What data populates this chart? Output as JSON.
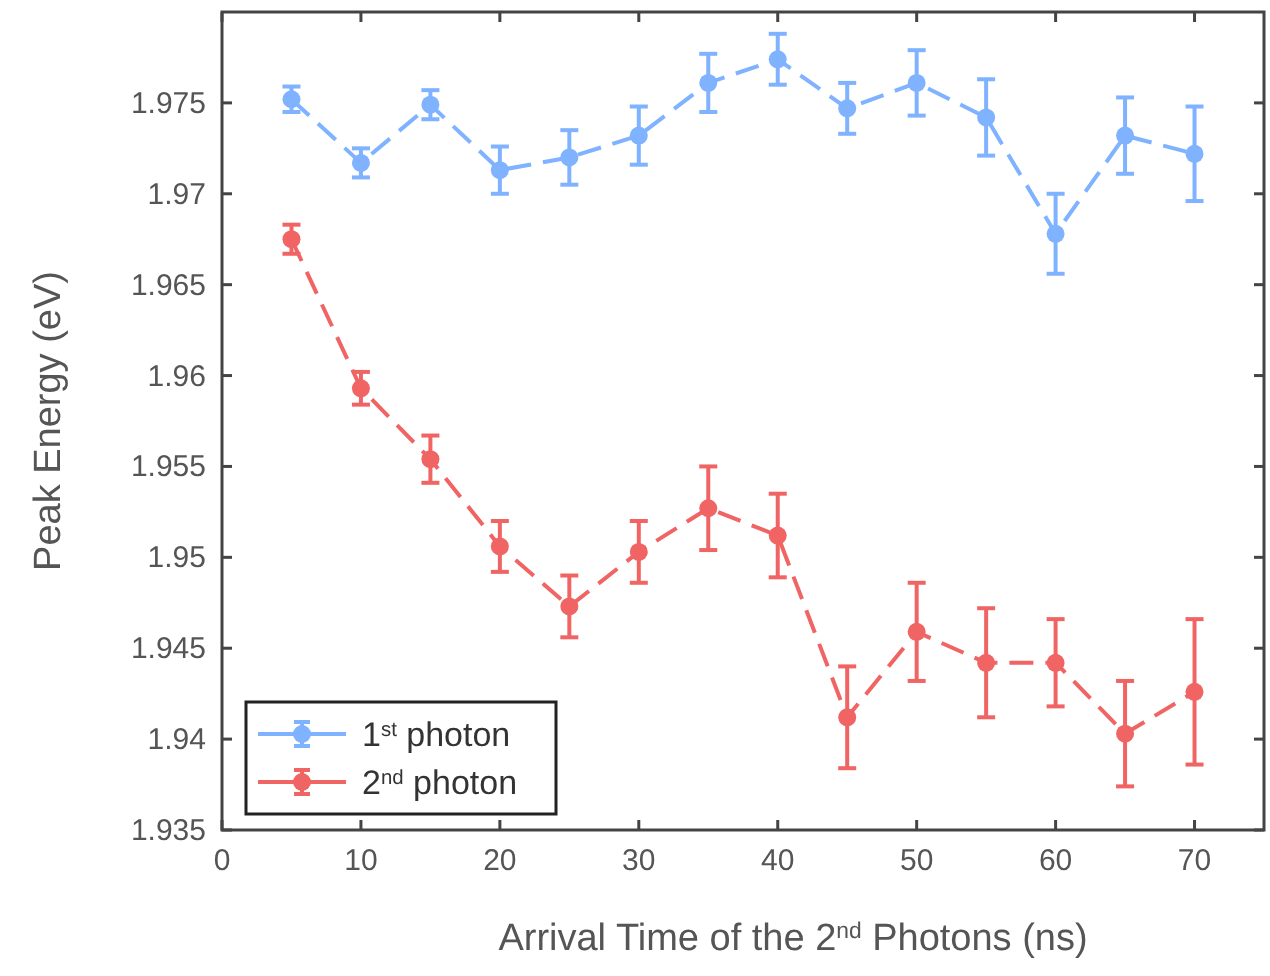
{
  "chart_data": {
    "type": "line",
    "xlabel": "Arrival Time of the 2$^{nd}$ Photons (ns)",
    "ylabel": "Peak Energy (eV)",
    "x": [
      5,
      10,
      15,
      20,
      25,
      30,
      35,
      40,
      45,
      50,
      55,
      60,
      65,
      70
    ],
    "series": [
      {
        "name": "1$^{st}$ photon",
        "color": "#7fb2ff",
        "values": [
          1.9752,
          1.9717,
          1.9749,
          1.9713,
          1.972,
          1.9732,
          1.9761,
          1.9774,
          1.9747,
          1.9761,
          1.9742,
          1.9678,
          1.9732,
          1.9722
        ],
        "errors": [
          0.0007,
          0.0008,
          0.0008,
          0.0013,
          0.0015,
          0.0016,
          0.0016,
          0.0014,
          0.0014,
          0.0018,
          0.0021,
          0.0022,
          0.0021,
          0.0026
        ]
      },
      {
        "name": "2$^{nd}$ photon",
        "color": "#f06464",
        "values": [
          1.9675,
          1.9593,
          1.9554,
          1.9506,
          1.9473,
          1.9503,
          1.9527,
          1.9512,
          1.9412,
          1.9459,
          1.9442,
          1.9442,
          1.9403,
          1.9426
        ],
        "errors": [
          0.0008,
          0.0009,
          0.0013,
          0.0014,
          0.0017,
          0.0017,
          0.0023,
          0.0023,
          0.0028,
          0.0027,
          0.003,
          0.0024,
          0.0029,
          0.004
        ]
      }
    ],
    "xlim": [
      0,
      75
    ],
    "xticks": [
      0,
      10,
      20,
      30,
      40,
      50,
      60,
      70
    ],
    "ylim": [
      1.935,
      1.98
    ],
    "yticks": [
      1.935,
      1.94,
      1.945,
      1.95,
      1.955,
      1.96,
      1.965,
      1.97,
      1.975
    ],
    "grid": false,
    "legend": "bottom left",
    "marker": "circle",
    "line_style": "dashed"
  }
}
